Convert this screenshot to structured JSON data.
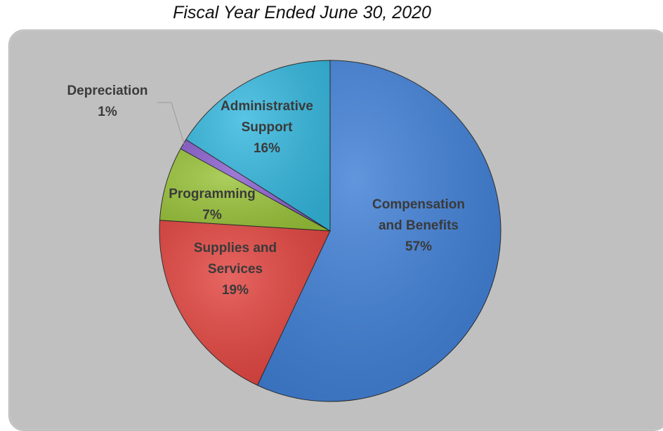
{
  "chart_data": {
    "type": "pie",
    "title": "Fiscal Year Ended June 30, 2020",
    "slices": [
      {
        "label_lines": [
          "Compensation",
          "and Benefits"
        ],
        "pct_label": "57%",
        "value": 57,
        "color": "#3f7fd6"
      },
      {
        "label_lines": [
          "Supplies and",
          "Services"
        ],
        "pct_label": "19%",
        "value": 19,
        "color": "#e2443f"
      },
      {
        "label_lines": [
          "Programming"
        ],
        "pct_label": "7%",
        "value": 7,
        "color": "#9ac43a"
      },
      {
        "label_lines": [
          "Depreciation"
        ],
        "pct_label": "1%",
        "value": 1,
        "color": "#8b5fd0"
      },
      {
        "label_lines": [
          "Administrative",
          "Support"
        ],
        "pct_label": "16%",
        "value": 16,
        "color": "#35b8df"
      }
    ],
    "start_angle_deg": 0,
    "direction": "clockwise",
    "legend": "none"
  }
}
